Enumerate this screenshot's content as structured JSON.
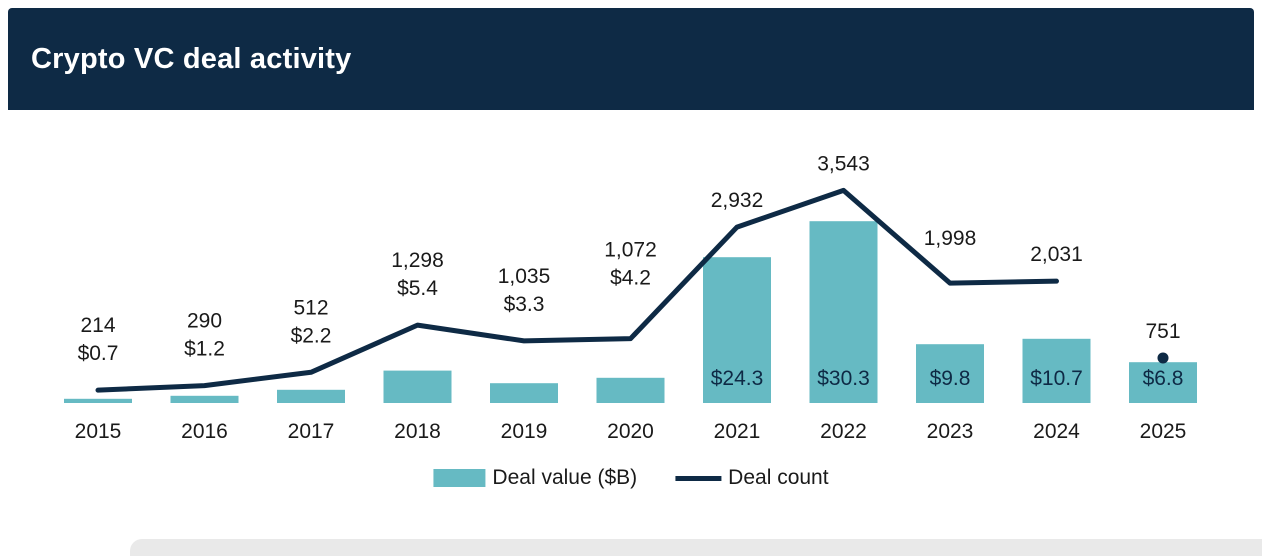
{
  "header": {
    "title": "Crypto VC deal activity"
  },
  "legend": [
    {
      "label": "Deal value ($B)",
      "swatch": "bar"
    },
    {
      "label": "Deal count",
      "swatch": "line"
    }
  ],
  "colors": {
    "navy": "#0e2a45",
    "teal": "#66bac3",
    "label_dark": "#1a1a1a",
    "strip_gray": "#e9e9e9",
    "background": "#ffffff"
  },
  "chart_data": {
    "type": "bar",
    "title": "Crypto VC deal activity",
    "categories": [
      "2015",
      "2016",
      "2017",
      "2018",
      "2019",
      "2020",
      "2021",
      "2022",
      "2023",
      "2024",
      "2025"
    ],
    "series": [
      {
        "name": "Deal value ($B)",
        "type": "bar",
        "values": [
          0.7,
          1.2,
          2.2,
          5.4,
          3.3,
          4.2,
          24.3,
          30.3,
          9.8,
          10.7,
          6.8
        ],
        "labels": [
          "$0.7",
          "$1.2",
          "$2.2",
          "$5.4",
          "$3.3",
          "$4.2",
          "$24.3",
          "$30.3",
          "$9.8",
          "$10.7",
          "$6.8"
        ]
      },
      {
        "name": "Deal count",
        "type": "line",
        "values": [
          214,
          290,
          512,
          1298,
          1035,
          1072,
          2932,
          3543,
          1998,
          2031,
          751
        ],
        "labels": [
          "214",
          "290",
          "512",
          "1,298",
          "1,035",
          "1,072",
          "2,932",
          "3,543",
          "1,998",
          "2,031",
          "751"
        ],
        "isolated_last_point": true
      }
    ],
    "xlabel": "",
    "ylabel": "",
    "grid": false,
    "legend_position": "bottom",
    "value_label_placement": [
      "above",
      "above",
      "above",
      "above",
      "above",
      "above",
      "inside",
      "inside",
      "inside",
      "inside",
      "inside"
    ]
  }
}
